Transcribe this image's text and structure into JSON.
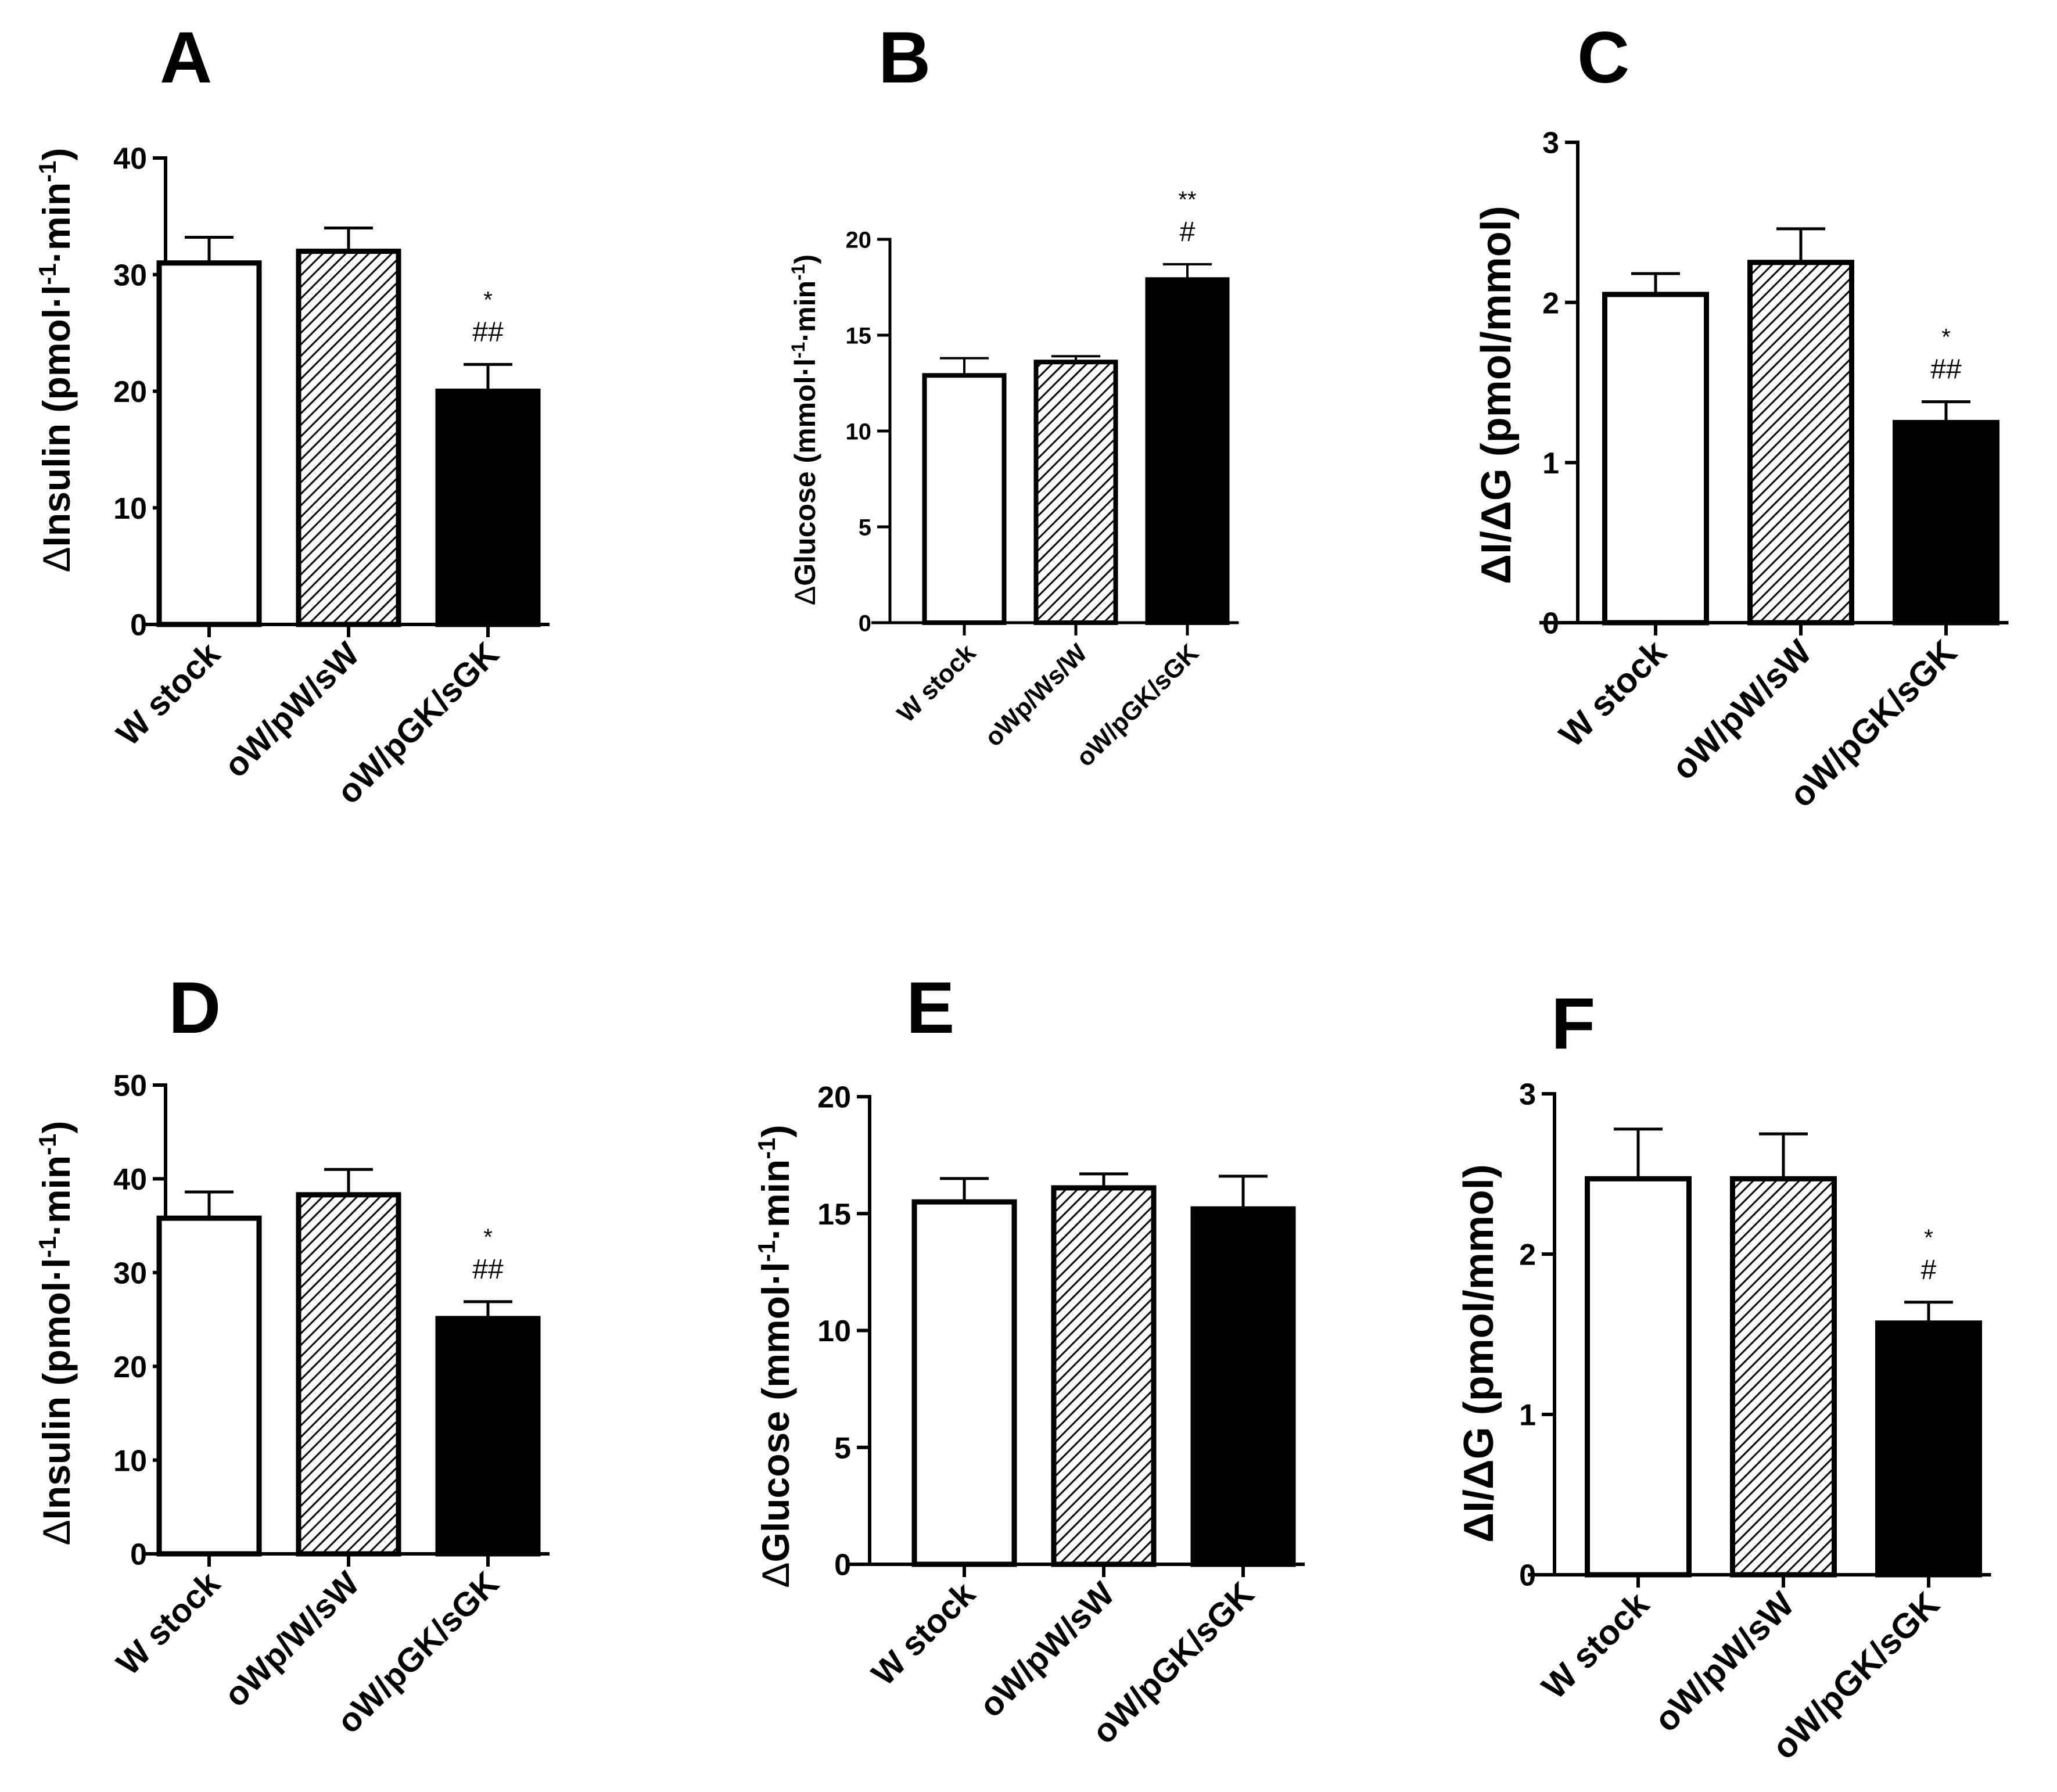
{
  "figure": {
    "panels": [
      {
        "letter": "A",
        "ylabel_delta": "Δ",
        "ylabel_main": "Insulin (pmol·l",
        "ylabel_sup1": "-1",
        "ylabel_mid": "·min",
        "ylabel_sup2": "-1",
        "ylabel_close": ")"
      },
      {
        "letter": "B",
        "ylabel_delta": "Δ",
        "ylabel_main": "Glucose (mmol·l",
        "ylabel_sup1": "-1",
        "ylabel_mid": "·min",
        "ylabel_sup2": "-1",
        "ylabel_close": ")"
      },
      {
        "letter": "C",
        "ylabel_text": "ΔI/ΔG (pmol/mmol)"
      },
      {
        "letter": "D",
        "ylabel_delta": "Δ",
        "ylabel_main": "Insulin (pmol·l",
        "ylabel_sup1": "-1",
        "ylabel_mid": "·min",
        "ylabel_sup2": "-1",
        "ylabel_close": ")"
      },
      {
        "letter": "E",
        "ylabel_delta": "Δ",
        "ylabel_main": "Glucose (mmol·l",
        "ylabel_sup1": "-1",
        "ylabel_mid": "·min",
        "ylabel_sup2": "-1",
        "ylabel_close": ")"
      },
      {
        "letter": "F",
        "ylabel_text": "ΔI/ΔG (pmol/mmol)"
      }
    ]
  },
  "colors": {
    "axis": "#000000",
    "open_fill": "#ffffff",
    "hatch": "#000000",
    "solid_fill": "#000000"
  },
  "chart_data": [
    {
      "panel": "A",
      "type": "bar",
      "ylabel": "ΔInsulin (pmol·l-1·min-1)",
      "ylim": [
        0,
        40
      ],
      "yticks": [
        0,
        10,
        20,
        30,
        40
      ],
      "categories": [
        "W stock",
        "oW/pW/sW",
        "oW/pGK/sGK"
      ],
      "values": [
        31,
        32,
        20
      ],
      "errors": [
        2.2,
        2,
        2.3
      ],
      "annotations": [
        {
          "category": "oW/pGK/sGK",
          "lines": [
            "*",
            "##"
          ]
        }
      ]
    },
    {
      "panel": "B",
      "type": "bar",
      "ylabel": "ΔGlucose (mmol·l-1·min-1)",
      "ylim": [
        0,
        20
      ],
      "yticks": [
        0,
        5,
        10,
        15,
        20
      ],
      "categories": [
        "W stock",
        "oWp/Ws/W",
        "oW/pGK/sGK"
      ],
      "values": [
        12.9,
        13.6,
        17.9
      ],
      "errors": [
        0.9,
        0.3,
        0.8
      ],
      "annotations": [
        {
          "category": "oW/pGK/sGK",
          "lines": [
            "**",
            "#"
          ]
        }
      ]
    },
    {
      "panel": "C",
      "type": "bar",
      "ylabel": "ΔI/ΔG (pmol/mmol)",
      "ylim": [
        0,
        3
      ],
      "yticks": [
        0,
        1,
        2,
        3
      ],
      "categories": [
        "W stock",
        "oW/pW/sW",
        "oW/pGK/sGK"
      ],
      "values": [
        2.05,
        2.25,
        1.25
      ],
      "errors": [
        0.13,
        0.21,
        0.13
      ],
      "annotations": [
        {
          "category": "oW/pGK/sGK",
          "lines": [
            "*",
            "##"
          ]
        }
      ]
    },
    {
      "panel": "D",
      "type": "bar",
      "ylabel": "ΔInsulin (pmol·l-1·min-1)",
      "ylim": [
        0,
        50
      ],
      "yticks": [
        0,
        10,
        20,
        30,
        40,
        50
      ],
      "categories": [
        "W stock",
        "oWp/W/sW",
        "oW/pGK/sGK"
      ],
      "values": [
        35.8,
        38.3,
        25.1
      ],
      "errors": [
        2.8,
        2.7,
        1.8
      ],
      "annotations": [
        {
          "category": "oW/pGK/sGK",
          "lines": [
            "*",
            "##"
          ]
        }
      ]
    },
    {
      "panel": "E",
      "type": "bar",
      "ylabel": "ΔGlucose (mmol·l-1·min-1)",
      "ylim": [
        0,
        20
      ],
      "yticks": [
        0,
        5,
        10,
        15,
        20
      ],
      "categories": [
        "W stock",
        "oW/pW/sW",
        "oW/pGK/sGK"
      ],
      "values": [
        15.5,
        16.1,
        15.2
      ],
      "errors": [
        1.0,
        0.6,
        1.4
      ],
      "annotations": []
    },
    {
      "panel": "F",
      "type": "bar",
      "ylabel": "ΔI/ΔG (pmol/mmol)",
      "ylim": [
        0,
        3
      ],
      "yticks": [
        0,
        1,
        2,
        3
      ],
      "categories": [
        "W stock",
        "oW/pW/sW",
        "oW/pGK/sGK"
      ],
      "values": [
        2.47,
        2.47,
        1.57
      ],
      "errors": [
        0.31,
        0.28,
        0.13
      ],
      "annotations": [
        {
          "category": "oW/pGK/sGK",
          "lines": [
            "*",
            "#"
          ]
        }
      ]
    }
  ]
}
